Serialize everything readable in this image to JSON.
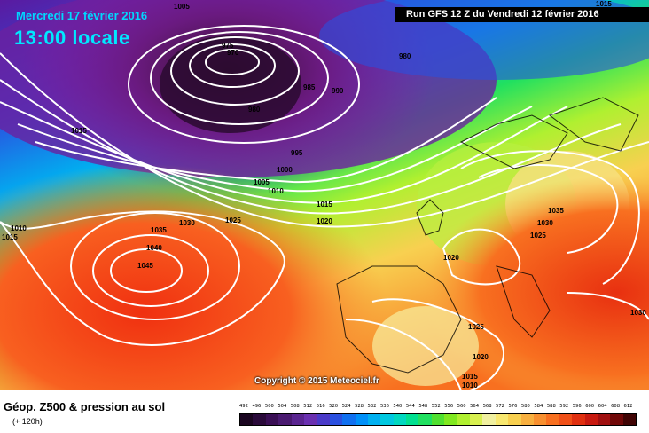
{
  "header": {
    "date": "Mercredi 17 février 2016",
    "time": "13:00 locale",
    "run": "Run GFS 12 Z du Vendredi 12 février 2016"
  },
  "map": {
    "copyright": "Copyright © 2015 Meteociel.fr",
    "isobar_labels": [
      "1005",
      "1015",
      "975",
      "970",
      "980",
      "985",
      "990",
      "980",
      "1015",
      "995",
      "1000",
      "1005",
      "1010",
      "1015",
      "1020",
      "1010",
      "1015",
      "1035",
      "1030",
      "1025",
      "1040",
      "1045",
      "1035",
      "1030",
      "1025",
      "1020",
      "1025",
      "1020",
      "1015",
      "1010",
      "1030"
    ]
  },
  "legend": {
    "title": "Géop. Z500 & pression au sol",
    "subtitle": "(+ 120h)",
    "scale_values": [
      "492",
      "496",
      "500",
      "504",
      "508",
      "512",
      "516",
      "520",
      "524",
      "528",
      "532",
      "536",
      "540",
      "544",
      "548",
      "552",
      "556",
      "560",
      "564",
      "568",
      "572",
      "576",
      "580",
      "584",
      "588",
      "592",
      "596",
      "600",
      "604",
      "608",
      "612"
    ],
    "scale_colors": [
      "#1a0520",
      "#2a0a3a",
      "#3a0f55",
      "#4a1a70",
      "#5a2590",
      "#6a30b0",
      "#4a3ac8",
      "#2a50e0",
      "#1070f0",
      "#0090f8",
      "#00b0f0",
      "#00c8e0",
      "#00d8c0",
      "#00e090",
      "#20e060",
      "#50e030",
      "#80e820",
      "#b0f030",
      "#d8f050",
      "#f0f0a0",
      "#f8e870",
      "#f8d050",
      "#f8b040",
      "#f89030",
      "#f87020",
      "#f05018",
      "#e03010",
      "#c81a10",
      "#a01010",
      "#700808",
      "#400404"
    ]
  }
}
